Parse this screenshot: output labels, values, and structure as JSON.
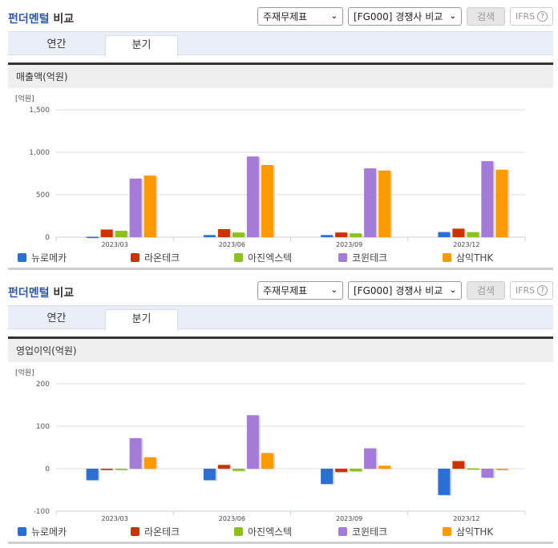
{
  "header": {
    "title_accent": "펀더멘털",
    "title_rest": " 비교",
    "select_statement": "주재무제표",
    "select_group": "[FG000] 경쟁사 비교",
    "search_label": "검색",
    "ifrs_label": "IFRS",
    "help_icon": "?"
  },
  "tabs": [
    {
      "label": "연간",
      "active": false
    },
    {
      "label": "분기",
      "active": true
    }
  ],
  "colors": {
    "뉴로메카": "#2a6fd6",
    "라온테크": "#cc3300",
    "아진엑스텍": "#8cc21a",
    "코윈테크": "#a57bd9",
    "삼익THK": "#ff9900"
  },
  "legend": [
    "뉴로메카",
    "라온테크",
    "아진엑스텍",
    "코윈테크",
    "삼익THK"
  ],
  "sections": [
    {
      "chart_title": "매출액(억원)",
      "unit_label": "[억원]"
    },
    {
      "chart_title": "영업이익(억원)",
      "unit_label": "[억원]"
    }
  ],
  "chart_data": [
    {
      "type": "bar",
      "title": "매출액(억원)",
      "ylabel": "[억원]",
      "xlabel": "",
      "categories": [
        "2023/03",
        "2023/06",
        "2023/09",
        "2023/12"
      ],
      "yticks": [
        0,
        500,
        1000,
        1500
      ],
      "ytick_labels": [
        "0",
        "500",
        "1,000",
        "1,500"
      ],
      "ylim": [
        0,
        1500
      ],
      "grid": true,
      "legend_position": "bottom",
      "series": [
        {
          "name": "뉴로메카",
          "values": [
            5,
            25,
            25,
            60
          ]
        },
        {
          "name": "라온테크",
          "values": [
            90,
            95,
            55,
            100
          ]
        },
        {
          "name": "아진엑스텍",
          "values": [
            75,
            55,
            45,
            60
          ]
        },
        {
          "name": "코윈테크",
          "values": [
            690,
            950,
            810,
            895
          ]
        },
        {
          "name": "삼익THK",
          "values": [
            725,
            850,
            785,
            795
          ]
        }
      ]
    },
    {
      "type": "bar",
      "title": "영업이익(억원)",
      "ylabel": "[억원]",
      "xlabel": "",
      "categories": [
        "2023/03",
        "2023/06",
        "2023/09",
        "2023/12"
      ],
      "yticks": [
        -100,
        0,
        100,
        200
      ],
      "ytick_labels": [
        "-100",
        "0",
        "100",
        "200"
      ],
      "ylim": [
        -100,
        200
      ],
      "grid": true,
      "legend_position": "bottom",
      "series": [
        {
          "name": "뉴로메카",
          "values": [
            -27,
            -27,
            -36,
            -62
          ]
        },
        {
          "name": "라온테크",
          "values": [
            -3,
            9,
            -8,
            18
          ]
        },
        {
          "name": "아진엑스텍",
          "values": [
            -2,
            -5,
            -6,
            1
          ]
        },
        {
          "name": "코윈테크",
          "values": [
            72,
            126,
            48,
            -21
          ]
        },
        {
          "name": "삼익THK",
          "values": [
            27,
            37,
            7,
            0
          ]
        }
      ]
    }
  ]
}
